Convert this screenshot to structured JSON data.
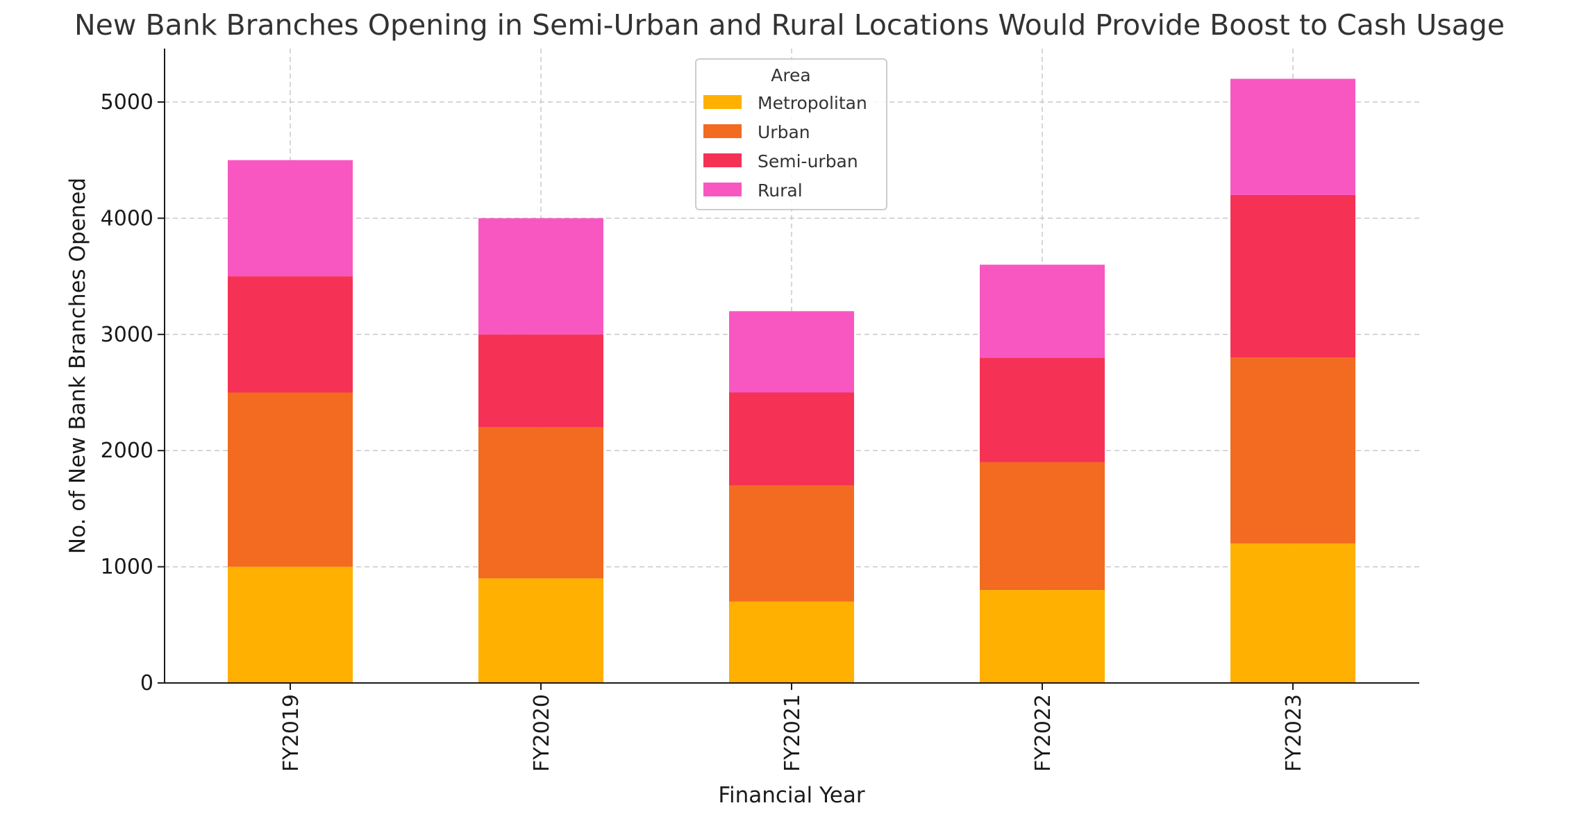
{
  "chart_data": {
    "type": "bar",
    "stacked": true,
    "title": "New Bank Branches Opening in Semi-Urban and Rural Locations Would Provide Boost to Cash Usage",
    "xlabel": "Financial Year",
    "ylabel": "No. of New Bank Branches Opened",
    "categories": [
      "FY2019",
      "FY2020",
      "FY2021",
      "FY2022",
      "FY2023"
    ],
    "series": [
      {
        "name": "Metropolitan",
        "color": "#FFB000",
        "values": [
          1000,
          900,
          700,
          800,
          1200
        ]
      },
      {
        "name": "Urban",
        "color": "#F26B21",
        "values": [
          1500,
          1300,
          1000,
          1100,
          1600
        ]
      },
      {
        "name": "Semi-urban",
        "color": "#F53255",
        "values": [
          1000,
          800,
          800,
          900,
          1400
        ]
      },
      {
        "name": "Rural",
        "color": "#F857C1",
        "values": [
          1000,
          1000,
          700,
          800,
          1000
        ]
      }
    ],
    "ylim": [
      0,
      5460
    ],
    "yticks": [
      0,
      1000,
      2000,
      3000,
      4000,
      5000
    ],
    "grid": true,
    "legend": {
      "title": "Area",
      "position": "top-center"
    }
  }
}
